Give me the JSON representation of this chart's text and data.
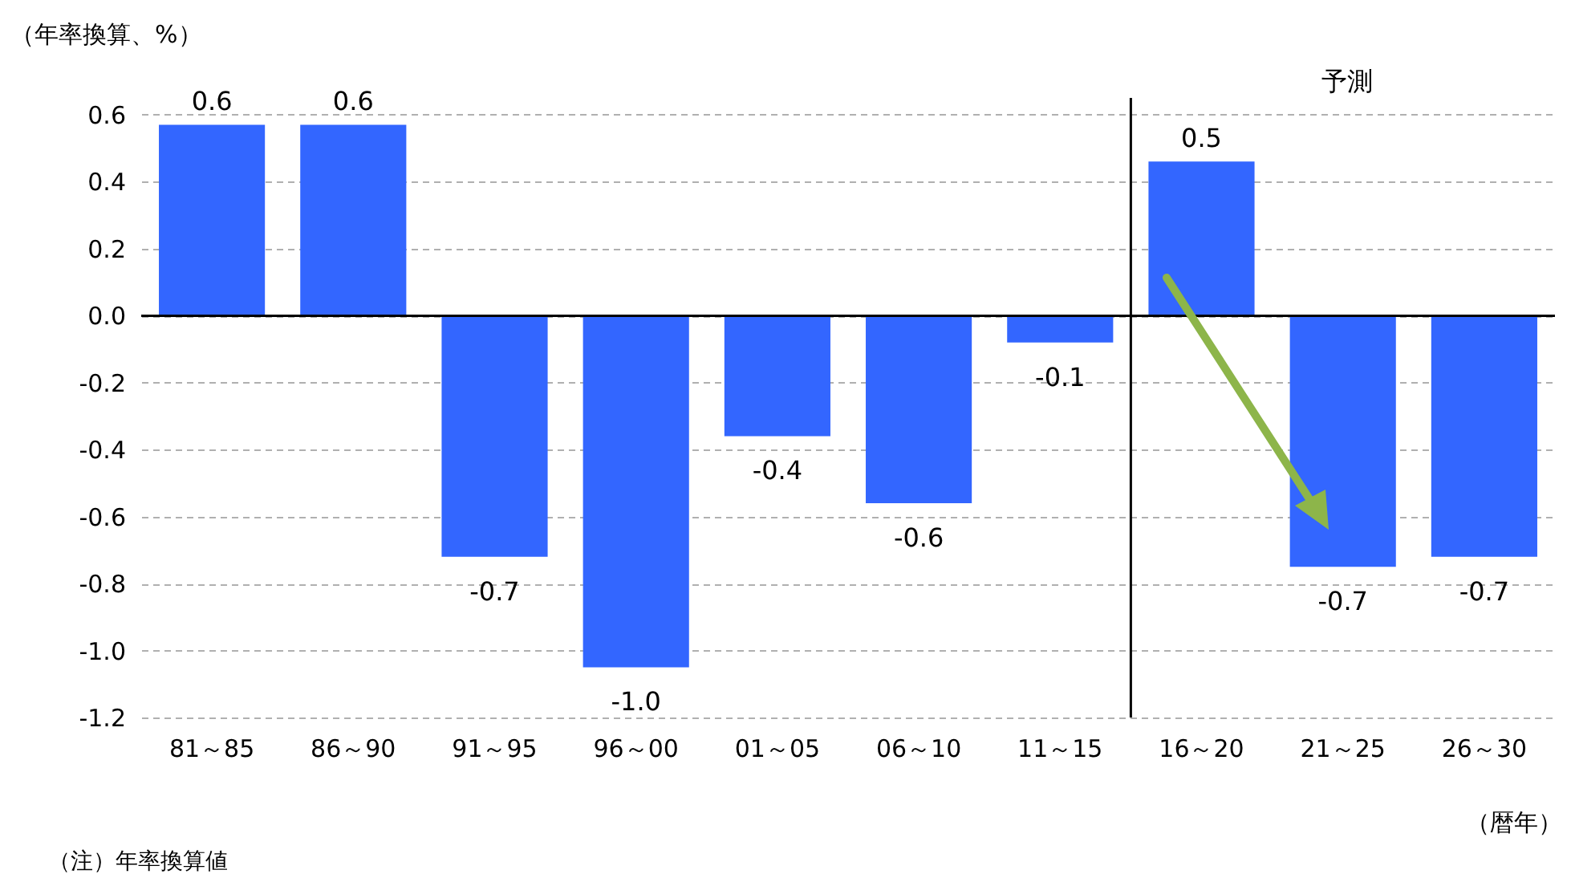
{
  "chart_data": {
    "type": "bar",
    "ylabel": "（年率換算、%）",
    "xlabel": "（暦年）",
    "categories": [
      "81～85",
      "86～90",
      "91～95",
      "96～00",
      "01～05",
      "06～10",
      "11～15",
      "16～20",
      "21～25",
      "26～30"
    ],
    "values": [
      0.57,
      0.57,
      -0.72,
      -1.05,
      -0.36,
      -0.56,
      -0.08,
      0.46,
      -0.75,
      -0.72
    ],
    "value_labels": [
      "0.6",
      "0.6",
      "-0.7",
      "-1.0",
      "-0.4",
      "-0.6",
      "-0.1",
      "0.5",
      "-0.7",
      "-0.7"
    ],
    "color": "#3366ff",
    "ylim": [
      -1.2,
      0.65
    ],
    "yticks": [
      {
        "value": -1.2,
        "label": "-1.2"
      },
      {
        "value": -1.0,
        "label": "-1.0"
      },
      -0.8,
      -0.6,
      -0.4,
      -0.2,
      {
        "value": 0,
        "label": "0.0"
      },
      0.2,
      0.4,
      0.6
    ],
    "grid": "y",
    "ref_lines": [
      {
        "axis": "x",
        "value": "16～20",
        "label": "予測"
      }
    ],
    "annotations": [
      "（注）年率換算値"
    ]
  }
}
